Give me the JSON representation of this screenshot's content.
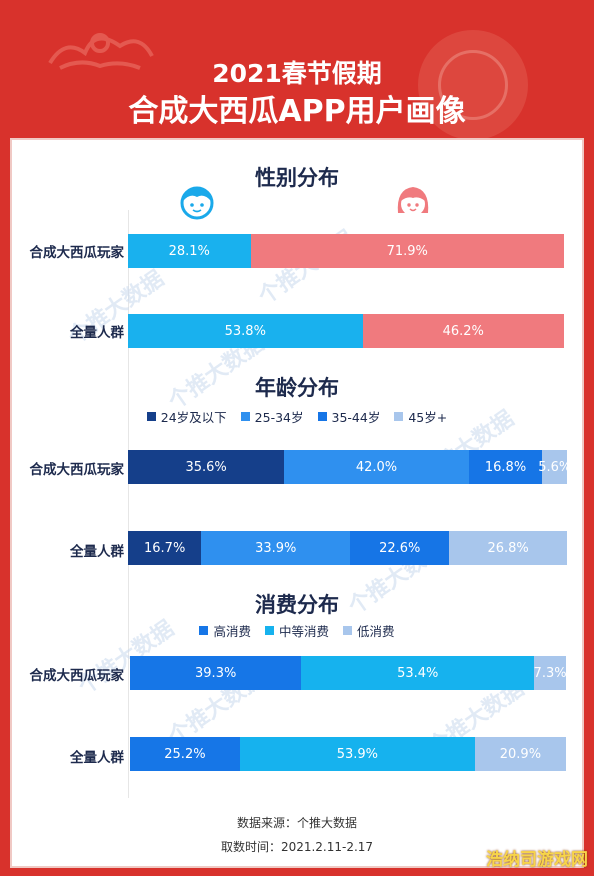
{
  "header": {
    "title_line1": "2021春节假期",
    "title_line2": "合成大西瓜APP用户画像"
  },
  "watermark_text": "个推大数据",
  "colors": {
    "background_red": "#d8322c",
    "male": "#19b1ee",
    "female": "#f07a7e",
    "age_24_below": "#153f8a",
    "age_25_34": "#2f90ef",
    "age_35_44": "#1675e6",
    "age_45_plus": "#a8c6ec",
    "spend_high": "#1676e7",
    "spend_mid": "#16b2ee",
    "spend_low": "#a8c6ec"
  },
  "icons": {
    "male": "boy-face-icon",
    "female": "girl-face-icon"
  },
  "chart_data": [
    {
      "type": "bar",
      "stacked": "percent",
      "orientation": "horizontal",
      "title": "性别分布",
      "categories": [
        "合成大西瓜玩家",
        "全量人群"
      ],
      "series": [
        {
          "name": "",
          "values": [
            28.1,
            53.8
          ],
          "labels": [
            "28.1%",
            "53.8%"
          ],
          "color": "#19b1ee"
        },
        {
          "name": "",
          "values": [
            71.9,
            46.2
          ],
          "labels": [
            "71.9%",
            "46.2%"
          ],
          "color": "#f07a7e"
        }
      ]
    },
    {
      "type": "bar",
      "stacked": "percent",
      "orientation": "horizontal",
      "title": "年龄分布",
      "legend": "top-center",
      "categories": [
        "合成大西瓜玩家",
        "全量人群"
      ],
      "series": [
        {
          "name": "24岁及以下",
          "values": [
            35.6,
            16.7
          ],
          "labels": [
            "35.6%",
            "16.7%"
          ],
          "color": "#153f8a"
        },
        {
          "name": "25-34岁",
          "values": [
            42.0,
            33.9
          ],
          "labels": [
            "42.0%",
            "33.9%"
          ],
          "color": "#2f90ef"
        },
        {
          "name": "35-44岁",
          "values": [
            16.8,
            22.6
          ],
          "labels": [
            "16.8%",
            "22.6%"
          ],
          "color": "#1675e6"
        },
        {
          "name": "45岁+",
          "values": [
            5.6,
            26.8
          ],
          "labels": [
            "5.6%",
            "26.8%"
          ],
          "color": "#a8c6ec"
        }
      ]
    },
    {
      "type": "bar",
      "stacked": "percent",
      "orientation": "horizontal",
      "title": "消费分布",
      "legend": "top-center",
      "categories": [
        "合成大西瓜玩家",
        "全量人群"
      ],
      "series": [
        {
          "name": "高消费",
          "values": [
            39.3,
            25.2
          ],
          "labels": [
            "39.3%",
            "25.2%"
          ],
          "color": "#1676e7"
        },
        {
          "name": "中等消费",
          "values": [
            53.4,
            53.9
          ],
          "labels": [
            "53.4%",
            "53.9%"
          ],
          "color": "#16b2ee"
        },
        {
          "name": "低消费",
          "values": [
            7.3,
            20.9
          ],
          "labels": [
            "7.3%",
            "20.9%"
          ],
          "color": "#a8c6ec"
        }
      ]
    }
  ],
  "footer": {
    "source": "数据来源：个推大数据",
    "period": "取数时间：2021.2.11-2.17"
  },
  "corner_mark": "浩纳司游戏网"
}
